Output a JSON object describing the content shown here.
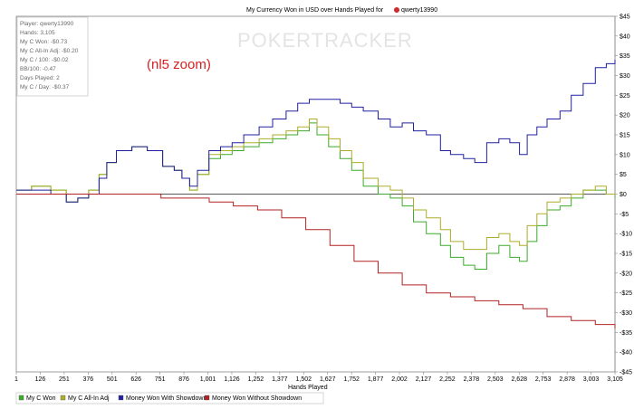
{
  "title": "My Currency Won in USD over Hands Played for",
  "player_name": "qwerty13990",
  "watermark": "POKERTRACKER",
  "annotation": "(nl5 zoom)",
  "stats": [
    "Player: qwerty13990",
    "Hands: 3,105",
    "My C Won: -$0.73",
    "My C All-In Adj: -$0.20",
    "My C / 100: -$0.02",
    "BB/100: -0.47",
    "Days Played: 2",
    "My C / Day: -$0.37"
  ],
  "chart_data": {
    "type": "line",
    "title": "My Currency Won in USD over Hands Played for qwerty13990",
    "xlabel": "Hands Played",
    "ylabel": "",
    "x_range": [
      1,
      3105
    ],
    "ylim": [
      -45,
      45
    ],
    "x_ticks": [
      "1",
      "126",
      "251",
      "376",
      "501",
      "626",
      "751",
      "876",
      "1,001",
      "1,126",
      "1,252",
      "1,377",
      "1,502",
      "1,627",
      "1,752",
      "1,877",
      "2,002",
      "2,127",
      "2,252",
      "2,378",
      "2,503",
      "2,628",
      "2,753",
      "2,878",
      "3,003",
      "3,105"
    ],
    "y_ticks": [
      "$45",
      "$40",
      "$35",
      "$30",
      "$25",
      "$20",
      "$15",
      "$10",
      "$5",
      "$0",
      "-$5",
      "-$10",
      "-$15",
      "-$20",
      "-$25",
      "-$30",
      "-$35",
      "-$40",
      "-$45"
    ],
    "grid": false,
    "legend_position": "bottom-left",
    "series": [
      {
        "name": "My C Won",
        "color": "#3cab2b",
        "points": [
          [
            1,
            1
          ],
          [
            80,
            2
          ],
          [
            180,
            1
          ],
          [
            260,
            -2
          ],
          [
            320,
            -1
          ],
          [
            376,
            1
          ],
          [
            430,
            5
          ],
          [
            470,
            8
          ],
          [
            520,
            11
          ],
          [
            600,
            12
          ],
          [
            680,
            11
          ],
          [
            760,
            7
          ],
          [
            820,
            6
          ],
          [
            860,
            4
          ],
          [
            900,
            1
          ],
          [
            940,
            5
          ],
          [
            1000,
            9
          ],
          [
            1060,
            10
          ],
          [
            1120,
            11
          ],
          [
            1180,
            12
          ],
          [
            1260,
            13
          ],
          [
            1330,
            14
          ],
          [
            1400,
            15
          ],
          [
            1460,
            16
          ],
          [
            1520,
            18
          ],
          [
            1560,
            15
          ],
          [
            1620,
            12
          ],
          [
            1680,
            9
          ],
          [
            1740,
            6
          ],
          [
            1800,
            2
          ],
          [
            1877,
            0
          ],
          [
            1940,
            -1
          ],
          [
            2002,
            -3
          ],
          [
            2060,
            -7
          ],
          [
            2127,
            -10
          ],
          [
            2200,
            -13
          ],
          [
            2252,
            -16
          ],
          [
            2320,
            -18
          ],
          [
            2378,
            -19
          ],
          [
            2440,
            -15
          ],
          [
            2503,
            -13
          ],
          [
            2560,
            -16
          ],
          [
            2610,
            -17
          ],
          [
            2650,
            -12
          ],
          [
            2700,
            -8
          ],
          [
            2753,
            -4
          ],
          [
            2820,
            -3
          ],
          [
            2878,
            -1
          ],
          [
            2940,
            1
          ],
          [
            3003,
            1
          ],
          [
            3060,
            0
          ],
          [
            3105,
            -1
          ]
        ]
      },
      {
        "name": "My C All-In Adj",
        "color": "#adad2a",
        "points": [
          [
            1,
            1
          ],
          [
            80,
            2
          ],
          [
            180,
            1
          ],
          [
            260,
            -2
          ],
          [
            320,
            -1
          ],
          [
            376,
            1
          ],
          [
            430,
            5
          ],
          [
            470,
            8
          ],
          [
            520,
            11
          ],
          [
            600,
            12
          ],
          [
            680,
            11
          ],
          [
            760,
            7
          ],
          [
            820,
            6
          ],
          [
            860,
            4
          ],
          [
            900,
            1
          ],
          [
            940,
            5
          ],
          [
            1000,
            10
          ],
          [
            1060,
            11
          ],
          [
            1120,
            12
          ],
          [
            1180,
            13
          ],
          [
            1260,
            14
          ],
          [
            1330,
            15
          ],
          [
            1400,
            16
          ],
          [
            1460,
            17
          ],
          [
            1520,
            19
          ],
          [
            1560,
            17
          ],
          [
            1620,
            14
          ],
          [
            1680,
            11
          ],
          [
            1740,
            8
          ],
          [
            1800,
            4
          ],
          [
            1877,
            2
          ],
          [
            1940,
            1
          ],
          [
            2002,
            -1
          ],
          [
            2060,
            -4
          ],
          [
            2127,
            -6
          ],
          [
            2200,
            -9
          ],
          [
            2252,
            -12
          ],
          [
            2320,
            -14
          ],
          [
            2378,
            -14
          ],
          [
            2440,
            -11
          ],
          [
            2503,
            -10
          ],
          [
            2560,
            -12
          ],
          [
            2610,
            -13
          ],
          [
            2650,
            -8
          ],
          [
            2700,
            -5
          ],
          [
            2753,
            -2
          ],
          [
            2820,
            -1
          ],
          [
            2878,
            0
          ],
          [
            2940,
            1
          ],
          [
            3003,
            2
          ],
          [
            3060,
            0
          ],
          [
            3105,
            -0.2
          ]
        ]
      },
      {
        "name": "Money Won With Showdown",
        "color": "#2020a0",
        "points": [
          [
            1,
            1
          ],
          [
            80,
            1
          ],
          [
            180,
            0
          ],
          [
            260,
            -2
          ],
          [
            320,
            -1
          ],
          [
            376,
            0
          ],
          [
            430,
            4
          ],
          [
            470,
            8
          ],
          [
            520,
            11
          ],
          [
            600,
            12
          ],
          [
            680,
            11
          ],
          [
            760,
            7
          ],
          [
            820,
            6
          ],
          [
            860,
            4
          ],
          [
            900,
            2
          ],
          [
            940,
            6
          ],
          [
            1000,
            11
          ],
          [
            1060,
            12
          ],
          [
            1120,
            13
          ],
          [
            1180,
            15
          ],
          [
            1260,
            17
          ],
          [
            1330,
            19
          ],
          [
            1400,
            21
          ],
          [
            1460,
            23
          ],
          [
            1520,
            24
          ],
          [
            1560,
            24
          ],
          [
            1620,
            24
          ],
          [
            1680,
            23
          ],
          [
            1740,
            22
          ],
          [
            1800,
            21
          ],
          [
            1877,
            19
          ],
          [
            1940,
            17
          ],
          [
            2002,
            18
          ],
          [
            2060,
            16
          ],
          [
            2127,
            15
          ],
          [
            2200,
            11
          ],
          [
            2252,
            10
          ],
          [
            2320,
            9
          ],
          [
            2378,
            8
          ],
          [
            2440,
            13
          ],
          [
            2503,
            14
          ],
          [
            2560,
            13
          ],
          [
            2610,
            10
          ],
          [
            2650,
            15
          ],
          [
            2700,
            17
          ],
          [
            2753,
            19
          ],
          [
            2820,
            21
          ],
          [
            2878,
            25
          ],
          [
            2940,
            28
          ],
          [
            3003,
            32
          ],
          [
            3060,
            33
          ],
          [
            3105,
            34
          ]
        ]
      },
      {
        "name": "Money Won Without Showdown",
        "color": "#b22222",
        "points": [
          [
            1,
            0
          ],
          [
            80,
            0
          ],
          [
            180,
            0
          ],
          [
            260,
            0
          ],
          [
            376,
            0
          ],
          [
            501,
            0
          ],
          [
            626,
            0
          ],
          [
            751,
            -1
          ],
          [
            876,
            -1
          ],
          [
            1001,
            -2
          ],
          [
            1126,
            -3
          ],
          [
            1252,
            -4
          ],
          [
            1377,
            -6
          ],
          [
            1502,
            -9
          ],
          [
            1627,
            -13
          ],
          [
            1752,
            -17
          ],
          [
            1877,
            -20
          ],
          [
            2002,
            -23
          ],
          [
            2127,
            -25
          ],
          [
            2252,
            -26
          ],
          [
            2378,
            -27
          ],
          [
            2503,
            -28
          ],
          [
            2628,
            -29
          ],
          [
            2753,
            -31
          ],
          [
            2878,
            -32
          ],
          [
            3003,
            -33
          ],
          [
            3105,
            -34
          ]
        ]
      }
    ]
  }
}
